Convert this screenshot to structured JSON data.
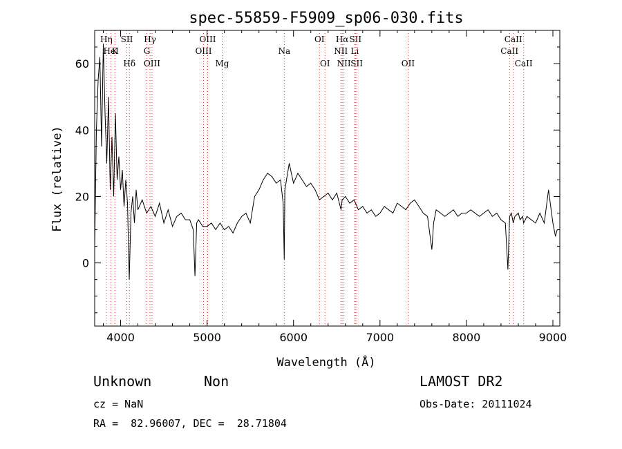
{
  "chart_data": {
    "type": "line",
    "title": "spec-55859-F5909_sp06-030.fits",
    "xlabel": "Wavelength (Å)",
    "ylabel": "Flux (relative)",
    "xlim": [
      3700,
      9080
    ],
    "ylim": [
      -19,
      70
    ],
    "xticks": [
      4000,
      5000,
      6000,
      7000,
      8000,
      9000
    ],
    "yticks": [
      0,
      20,
      40,
      60
    ],
    "series": [
      {
        "x": [
          3700,
          3720,
          3740,
          3760,
          3780,
          3800,
          3820,
          3840,
          3860,
          3880,
          3900,
          3920,
          3940,
          3960,
          3980,
          4000,
          4020,
          4040,
          4060,
          4080,
          4100,
          4120,
          4140,
          4160,
          4180,
          4200,
          4250,
          4300,
          4350,
          4400,
          4450,
          4500,
          4550,
          4600,
          4650,
          4700,
          4750,
          4800,
          4840,
          4860,
          4880,
          4900,
          4950,
          5000,
          5050,
          5100,
          5150,
          5200,
          5250,
          5300,
          5350,
          5400,
          5450,
          5500,
          5550,
          5600,
          5650,
          5700,
          5750,
          5800,
          5850,
          5880,
          5893,
          5900,
          5950,
          6000,
          6050,
          6100,
          6150,
          6200,
          6250,
          6300,
          6350,
          6400,
          6450,
          6500,
          6550,
          6563,
          6600,
          6650,
          6700,
          6750,
          6800,
          6850,
          6900,
          6950,
          7000,
          7050,
          7100,
          7150,
          7200,
          7250,
          7300,
          7350,
          7400,
          7450,
          7500,
          7550,
          7600,
          7620,
          7650,
          7700,
          7750,
          7800,
          7850,
          7900,
          7950,
          8000,
          8050,
          8100,
          8150,
          8200,
          8250,
          8300,
          8350,
          8400,
          8450,
          8480,
          8500,
          8520,
          8542,
          8560,
          8600,
          8620,
          8650,
          8662,
          8700,
          8750,
          8800,
          8850,
          8900,
          8950,
          9000,
          9030,
          9050
        ],
        "y": [
          5,
          40,
          55,
          62,
          35,
          66,
          45,
          30,
          50,
          22,
          38,
          20,
          45,
          25,
          32,
          22,
          28,
          17,
          25,
          18,
          -5,
          15,
          20,
          12,
          22,
          16,
          19,
          15,
          17,
          14,
          18,
          12,
          16,
          11,
          14,
          15,
          13,
          13,
          10,
          -4,
          12,
          13,
          11,
          11,
          12,
          10,
          12,
          10,
          11,
          9,
          12,
          14,
          15,
          12,
          20,
          22,
          25,
          27,
          26,
          24,
          25,
          18,
          1,
          22,
          30,
          24,
          27,
          25,
          23,
          24,
          22,
          19,
          20,
          21,
          19,
          21,
          16,
          19,
          20,
          18,
          19,
          16,
          17,
          15,
          16,
          14,
          15,
          17,
          16,
          15,
          18,
          17,
          16,
          18,
          19,
          17,
          15,
          14,
          4,
          12,
          16,
          15,
          14,
          15,
          16,
          14,
          15,
          15,
          16,
          15,
          14,
          15,
          16,
          14,
          15,
          13,
          12,
          -2,
          14,
          15,
          12,
          14,
          15,
          13,
          14,
          12,
          14,
          13,
          12,
          15,
          12,
          22,
          12,
          8,
          10
        ]
      }
    ],
    "spectral_lines": [
      {
        "label": "Hη",
        "wl": 3835,
        "row": 0
      },
      {
        "label": "HeI",
        "wl": 3889,
        "row": 1
      },
      {
        "label": "K",
        "wl": 3934,
        "row": 1
      },
      {
        "label": "SII",
        "wl": 4072,
        "row": 0
      },
      {
        "label": "Hδ",
        "wl": 4102,
        "row": 2
      },
      {
        "label": "Hγ",
        "wl": 4340,
        "row": 0
      },
      {
        "label": "G",
        "wl": 4304,
        "row": 1
      },
      {
        "label": "OIII",
        "wl": 4363,
        "row": 2
      },
      {
        "label": "OIII",
        "wl": 5007,
        "row": 0
      },
      {
        "label": "OIII",
        "wl": 4959,
        "row": 1
      },
      {
        "label": "Mg",
        "wl": 5175,
        "row": 2
      },
      {
        "label": "Na",
        "wl": 5893,
        "row": 1
      },
      {
        "label": "OI",
        "wl": 6300,
        "row": 0
      },
      {
        "label": "OI",
        "wl": 6364,
        "row": 2
      },
      {
        "label": "Hα",
        "wl": 6563,
        "row": 0
      },
      {
        "label": "NII",
        "wl": 6548,
        "row": 1
      },
      {
        "label": "NII",
        "wl": 6583,
        "row": 2
      },
      {
        "label": "SII",
        "wl": 6716,
        "row": 0
      },
      {
        "label": "Li",
        "wl": 6708,
        "row": 1
      },
      {
        "label": "SII",
        "wl": 6731,
        "row": 2
      },
      {
        "label": "OII",
        "wl": 7325,
        "row": 2
      },
      {
        "label": "CaII",
        "wl": 8542,
        "row": 0
      },
      {
        "label": "CaII",
        "wl": 8498,
        "row": 1
      },
      {
        "label": "CaII",
        "wl": 8662,
        "row": 2
      }
    ],
    "grid": false,
    "line_color": "#000000",
    "marker_color": "#c04040"
  },
  "info": {
    "class": "Unknown",
    "subclass": "Non",
    "survey": "LAMOST DR2",
    "cz": "cz = NaN",
    "obs_date": "Obs-Date: 20111024",
    "radec": "RA =  82.96007, DEC =  28.71804"
  }
}
